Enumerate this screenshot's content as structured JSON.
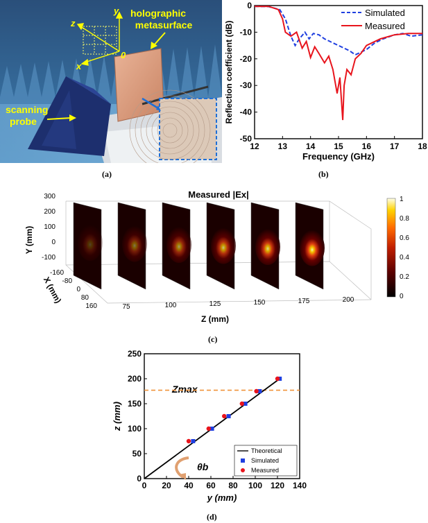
{
  "panel_a": {
    "labels": {
      "holographic": "holographic",
      "metasurface": "metasurface",
      "scanning": "scanning",
      "probe": "probe",
      "axis_y": "y",
      "axis_z": "z",
      "axis_x": "x",
      "origin": "0"
    },
    "caption": "(a)"
  },
  "chart_data": [
    {
      "type": "line",
      "xlabel": "Frequency (GHz)",
      "ylabel": "Reflection coefficient (dB)",
      "xlim": [
        12,
        18
      ],
      "ylim": [
        -50,
        0
      ],
      "xticks": [
        "12",
        "13",
        "14",
        "15",
        "16",
        "17",
        "18"
      ],
      "yticks": [
        "0",
        "-10",
        "-20",
        "-30",
        "-40",
        "-50"
      ],
      "legend_position": "top-right",
      "series": [
        {
          "name": "Simulated",
          "color": "#1f3fe0",
          "style": "dashed",
          "x": [
            12.0,
            12.5,
            12.9,
            13.1,
            13.3,
            13.45,
            13.6,
            13.8,
            13.95,
            14.1,
            14.3,
            14.5,
            14.8,
            15.1,
            15.4,
            15.6,
            15.8,
            16.0,
            16.3,
            16.6,
            17.0,
            17.3,
            17.6,
            18.0
          ],
          "y": [
            -0.3,
            -0.4,
            -1.5,
            -5.0,
            -11.5,
            -15.0,
            -12.5,
            -10.0,
            -12.5,
            -10.5,
            -11.0,
            -12.5,
            -14.0,
            -15.5,
            -17.0,
            -18.5,
            -17.5,
            -16.5,
            -14.0,
            -12.5,
            -11.0,
            -10.5,
            -11.5,
            -11.0
          ]
        },
        {
          "name": "Measured",
          "color": "#e8141c",
          "style": "solid",
          "x": [
            12.0,
            12.5,
            12.85,
            13.0,
            13.1,
            13.3,
            13.5,
            13.7,
            13.85,
            14.0,
            14.15,
            14.3,
            14.5,
            14.65,
            14.8,
            14.95,
            15.05,
            15.15,
            15.2,
            15.3,
            15.45,
            15.6,
            15.8,
            16.0,
            16.5,
            17.0,
            17.5,
            18.0
          ],
          "y": [
            -0.3,
            -0.3,
            -1.5,
            -5.0,
            -10.0,
            -11.5,
            -10.0,
            -16.0,
            -13.5,
            -19.5,
            -15.5,
            -18.0,
            -21.5,
            -19.0,
            -24.0,
            -33.0,
            -27.0,
            -43.0,
            -30.0,
            -24.0,
            -26.0,
            -20.0,
            -18.0,
            -15.0,
            -12.5,
            -11.0,
            -10.5,
            -10.5
          ]
        }
      ],
      "caption": "(b)"
    },
    {
      "type": "heatmap",
      "title": "Measured |Ex|",
      "xlabel": "X (mm)",
      "ylabel": "Y (mm)",
      "zlabel": "Z (mm)",
      "yticks": [
        "300",
        "200",
        "100",
        "0",
        "-100"
      ],
      "xticks": [
        "-160",
        "-80",
        "0",
        "80",
        "160"
      ],
      "zticks": [
        "75",
        "100",
        "125",
        "150",
        "175",
        "200"
      ],
      "colorbar_ticks": [
        "1",
        "0.8",
        "0.6",
        "0.4",
        "0.2",
        "0"
      ],
      "colorbar_range": [
        0,
        1
      ],
      "slices_z": [
        75,
        100,
        125,
        150,
        175,
        200
      ],
      "caption": "(c)"
    },
    {
      "type": "scatter",
      "xlabel": "y (mm)",
      "ylabel": "z (mm)",
      "xlim": [
        0,
        140
      ],
      "ylim": [
        0,
        250
      ],
      "xticks": [
        "0",
        "20",
        "40",
        "60",
        "80",
        "100",
        "120",
        "140"
      ],
      "yticks": [
        "0",
        "50",
        "100",
        "150",
        "200",
        "250"
      ],
      "zmax_label": "Zmax",
      "zmax_value": 177,
      "theta_label": "θb",
      "legend_position": "bottom-right",
      "series": [
        {
          "name": "Theoretical",
          "color": "#000000",
          "style": "line",
          "x": [
            0,
            122
          ],
          "y": [
            0,
            200
          ]
        },
        {
          "name": "Simulated",
          "color": "#1f3fe0",
          "style": "square",
          "x": [
            44,
            61,
            76,
            91,
            104,
            122
          ],
          "y": [
            75,
            100,
            125,
            150,
            175,
            200
          ]
        },
        {
          "name": "Measured",
          "color": "#e8141c",
          "style": "circle",
          "x": [
            40,
            58,
            72,
            88,
            101,
            120
          ],
          "y": [
            75,
            100,
            125,
            150,
            175,
            200
          ]
        }
      ],
      "caption": "(d)"
    }
  ]
}
